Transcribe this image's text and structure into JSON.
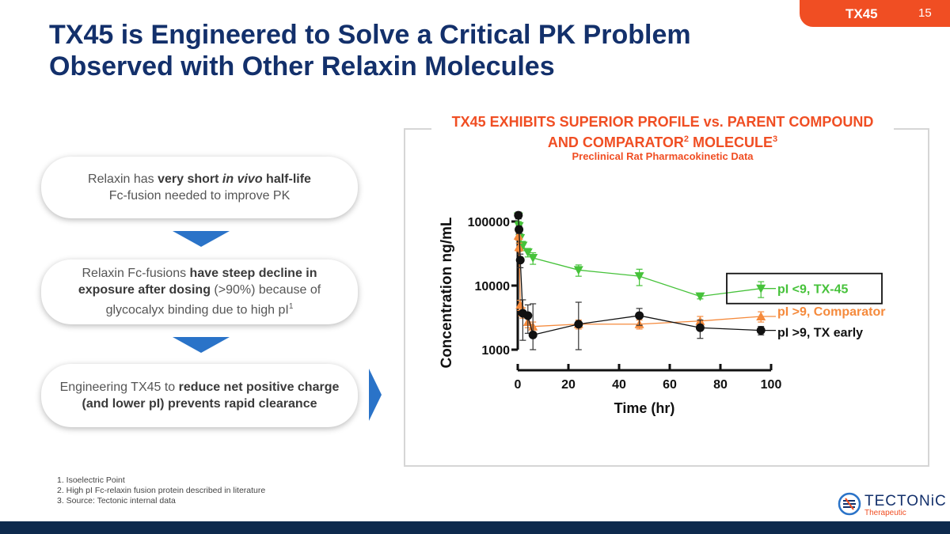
{
  "header": {
    "tag": "TX45",
    "page_number": "15",
    "title_line1": "TX45 is Engineered to Solve a Critical PK Problem",
    "title_line2": "Observed with Other Relaxin Molecules"
  },
  "steps": [
    {
      "line1_pre": "Relaxin has ",
      "line1_bold": "very short ",
      "line1_italic": "in vivo",
      "line1_bold2": " half-life",
      "line2": "Fc-fusion needed to improve PK"
    },
    {
      "pre": "Relaxin Fc-fusions ",
      "bold": "have steep decline in exposure after dosing",
      "post": " (>90%) because of glycocalyx binding due to high pI",
      "sup": "1"
    },
    {
      "pre": "Engineering TX45 to ",
      "bold": "reduce net positive charge (and lower pI) prevents rapid clearance"
    }
  ],
  "colors": {
    "brand_navy": "#13306b",
    "accent_orange": "#f04e23",
    "tx45_green": "#46c23a",
    "comparator_orange": "#f58a3c",
    "tx_early_black": "#111111",
    "arrow_blue": "#2a73c8"
  },
  "chart_heading": {
    "line1": "TX45 EXHIBITS SUPERIOR PROFILE vs. PARENT COMPOUND",
    "line2_pre": "AND COMPARATOR",
    "sup2": "2",
    "line2_post": " MOLECULE",
    "sup3": "3",
    "subtitle": "Preclinical Rat Pharmacokinetic Data"
  },
  "chart_data": {
    "type": "line",
    "xlabel": "Time (hr)",
    "ylabel": "Concentration   ng/mL",
    "x_scale": "linear",
    "y_scale": "log",
    "xlim": [
      0,
      100
    ],
    "ylim": [
      1000,
      100000
    ],
    "x_ticks": [
      "0",
      "20",
      "40",
      "60",
      "80",
      "100"
    ],
    "y_ticks": [
      "1000",
      "10000",
      "100000"
    ],
    "grid": false,
    "legend": "direct labels at right end of each series",
    "series": [
      {
        "name": "pI <9, TX-45",
        "color": "#46c23a",
        "marker": "triangle-down",
        "boxed_label": true,
        "points": [
          {
            "x": 0.25,
            "y": 120000,
            "err": 20000
          },
          {
            "x": 0.5,
            "y": 85000,
            "err": 12000
          },
          {
            "x": 1,
            "y": 55000,
            "err": 9000
          },
          {
            "x": 2,
            "y": 42000,
            "err": 7000
          },
          {
            "x": 4,
            "y": 33000,
            "err": 5000
          },
          {
            "x": 6,
            "y": 27000,
            "err": 5500
          },
          {
            "x": 24,
            "y": 17500,
            "err": 3500
          },
          {
            "x": 48,
            "y": 14000,
            "err": 4000
          },
          {
            "x": 72,
            "y": 6800,
            "err": 600
          },
          {
            "x": 96,
            "y": 9000,
            "err": 2500
          }
        ]
      },
      {
        "name": "pI >9, Comparator",
        "color": "#f58a3c",
        "marker": "triangle-up",
        "boxed_label": false,
        "points": [
          {
            "x": 0.25,
            "y": 60000,
            "err": 9000
          },
          {
            "x": 0.5,
            "y": 40000,
            "err": 6000
          },
          {
            "x": 1,
            "y": 5000,
            "err": 900
          },
          {
            "x": 2,
            "y": 3800,
            "err": 700
          },
          {
            "x": 4,
            "y": 2700,
            "err": 500
          },
          {
            "x": 6,
            "y": 2300,
            "err": 400
          },
          {
            "x": 24,
            "y": 2500,
            "err": 400
          },
          {
            "x": 48,
            "y": 2500,
            "err": 400
          },
          {
            "x": 72,
            "y": 2800,
            "err": 500
          },
          {
            "x": 96,
            "y": 3300,
            "err": 600
          }
        ]
      },
      {
        "name": "pI >9, TX early",
        "color": "#111111",
        "marker": "circle",
        "boxed_label": false,
        "points": [
          {
            "x": 0.25,
            "y": 125000,
            "err": 15000
          },
          {
            "x": 0.5,
            "y": 75000,
            "err": 10000
          },
          {
            "x": 1,
            "y": 25000,
            "err": 6000
          },
          {
            "x": 2,
            "y": 3700,
            "err": 2300
          },
          {
            "x": 4,
            "y": 3400,
            "err": 1600
          },
          {
            "x": 6,
            "y": 1700,
            "err": 3500
          },
          {
            "x": 24,
            "y": 2500,
            "err": 3000
          },
          {
            "x": 48,
            "y": 3400,
            "err": 1000
          },
          {
            "x": 72,
            "y": 2200,
            "err": 700
          },
          {
            "x": 96,
            "y": 2000,
            "err": 300
          }
        ]
      }
    ]
  },
  "footnotes": [
    "1.   Isoelectric Point",
    "2.   High pI Fc-relaxin fusion protein described in literature",
    "3.   Source: Tectonic internal data"
  ],
  "logo": {
    "name": "TECTONiC",
    "sub": "Therapeutic"
  }
}
